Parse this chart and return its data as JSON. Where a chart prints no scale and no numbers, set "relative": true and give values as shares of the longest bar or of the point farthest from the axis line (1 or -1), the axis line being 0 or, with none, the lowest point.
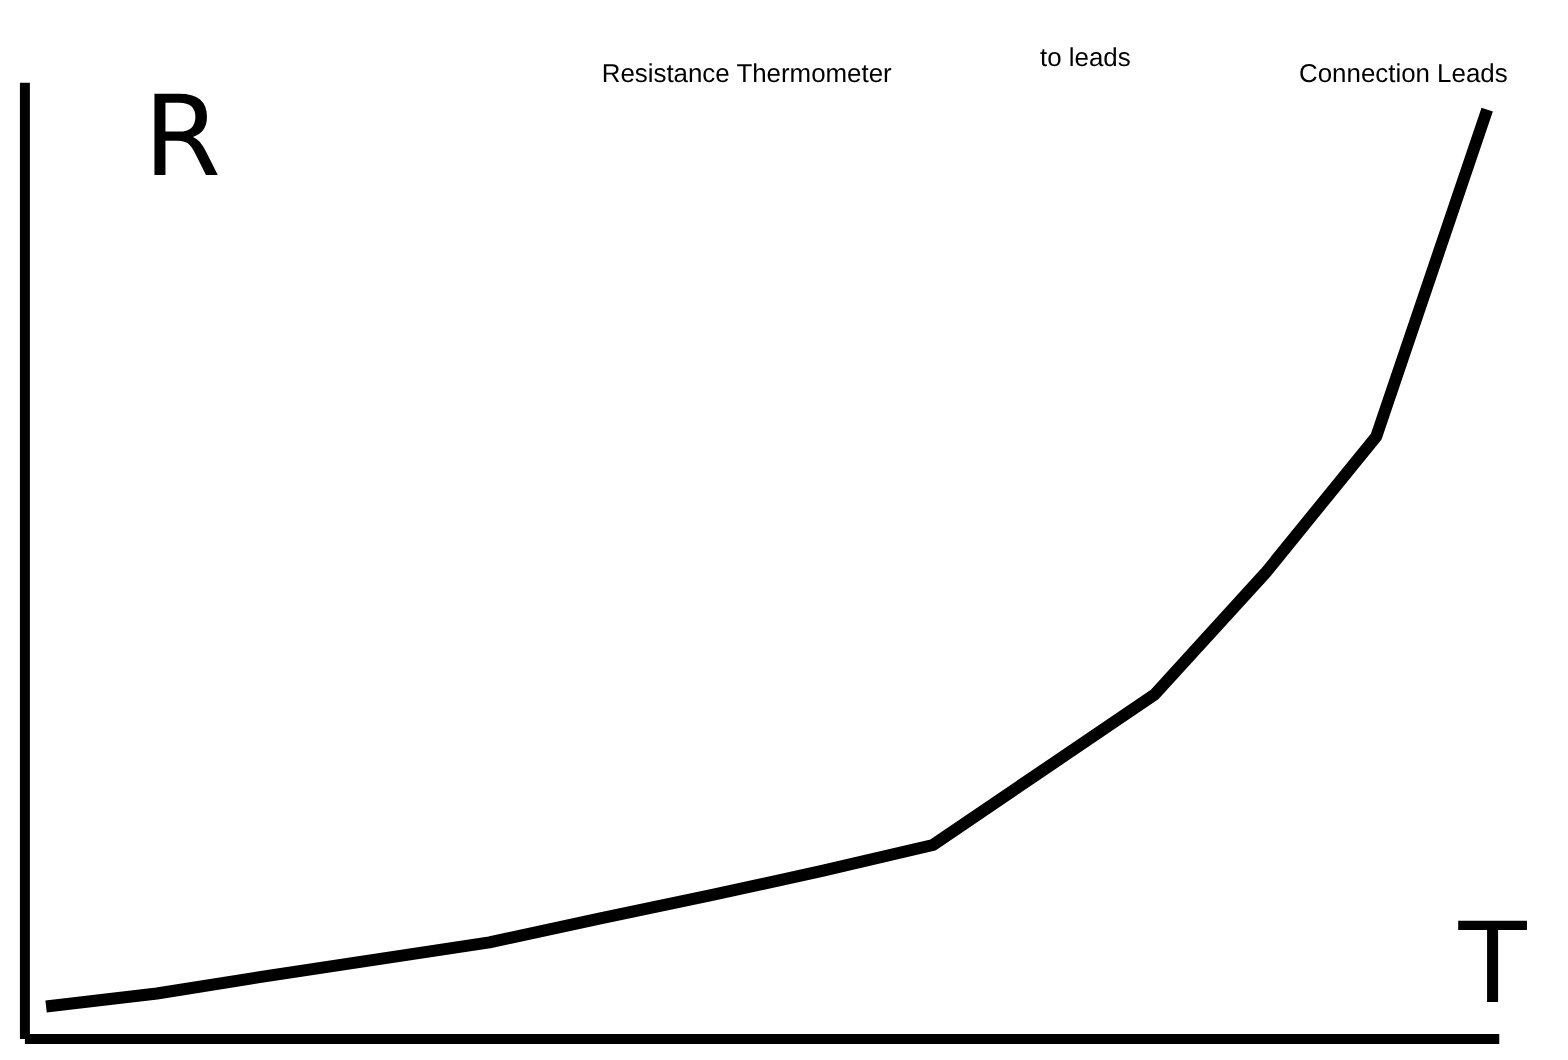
{
  "chart_data": {
    "type": "line",
    "relative": true,
    "xlabel": "T",
    "ylabel": "R",
    "categories": [
      null,
      null,
      null,
      null,
      null,
      null,
      null,
      null,
      null,
      null,
      null,
      null,
      null,
      null
    ],
    "series": [
      {
        "color": "#000000",
        "values": [
          0.034,
          0.048,
          0.067,
          0.085,
          0.103,
          0.129,
          0.154,
          0.18,
          0.208,
          0.289,
          0.37,
          0.501,
          0.648,
          1
        ]
      }
    ],
    "annotations": [
      "Resistance Thermometer",
      "to leads",
      "Connection Leads"
    ],
    "marker": "none",
    "line_style": "solid",
    "grid": false,
    "legend": false
  }
}
